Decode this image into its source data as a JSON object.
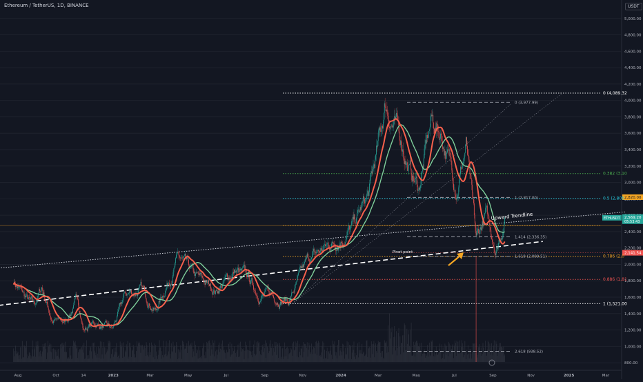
{
  "header": {
    "title": "Ethereum / TetherUS, 1D, BINANCE",
    "currency": "USDT"
  },
  "colors": {
    "background": "#131722",
    "grid": "#1e222d",
    "up_candle": "#26a69a",
    "down_candle": "#ef5350",
    "ma_fast": "#f7604c",
    "ma_slow": "#7fcf9b",
    "volume": "#2a2e39",
    "trendline": "#ffffff",
    "last_price": "#26a69a",
    "fib_price": "#f5a623",
    "arrow": "#f5a623"
  },
  "chart_data": {
    "type": "candlestick",
    "x_axis_labels": [
      "Aug",
      "Oct",
      "14",
      "2023",
      "Mar",
      "May",
      "Jul",
      "Sep",
      "Nov",
      "2024",
      "Mar",
      "May",
      "Jul",
      "Sep",
      "Nov",
      "2025",
      "Mar"
    ],
    "y_axis": {
      "range": [
        700,
        5200
      ],
      "ticks": [
        "800.00",
        "1,000.00",
        "1,200.00",
        "1,400.00",
        "1,600.00",
        "1,800.00",
        "2,000.00",
        "2,200.00",
        "2,400.00",
        "2,600.00",
        "2,800.00",
        "3,000.00",
        "3,200.00",
        "3,400.00",
        "3,600.00",
        "3,800.00",
        "4,000.00",
        "4,200.00",
        "4,400.00",
        "4,600.00",
        "4,800.00",
        "5,000.00"
      ]
    },
    "price_path": [
      [
        "2022-07-25",
        1800
      ],
      [
        "2022-08-14",
        1580
      ],
      [
        "2022-08-27",
        1480
      ],
      [
        "2022-09-08",
        1720
      ],
      [
        "2022-09-25",
        1320
      ],
      [
        "2022-10-15",
        1290
      ],
      [
        "2022-11-05",
        1580
      ],
      [
        "2022-11-14",
        1210
      ],
      [
        "2022-12-01",
        1280
      ],
      [
        "2022-12-31",
        1200
      ],
      [
        "2023-01-20",
        1630
      ],
      [
        "2023-02-15",
        1690
      ],
      [
        "2023-03-10",
        1440
      ],
      [
        "2023-04-15",
        2080
      ],
      [
        "2023-05-10",
        1850
      ],
      [
        "2023-06-15",
        1680
      ],
      [
        "2023-07-15",
        1920
      ],
      [
        "2023-08-05",
        1830
      ],
      [
        "2023-08-20",
        1650
      ],
      [
        "2023-09-15",
        1610
      ],
      [
        "2023-10-10",
        1560
      ],
      [
        "2023-11-10",
        2050
      ],
      [
        "2023-12-25",
        2300
      ],
      [
        "2024-01-20",
        2450
      ],
      [
        "2024-02-15",
        2850
      ],
      [
        "2024-03-05",
        3600
      ],
      [
        "2024-03-12",
        3950
      ],
      [
        "2024-04-10",
        3450
      ],
      [
        "2024-04-20",
        3150
      ],
      [
        "2024-05-05",
        2920
      ],
      [
        "2024-05-25",
        3750
      ],
      [
        "2024-06-10",
        3600
      ],
      [
        "2024-07-05",
        2950
      ],
      [
        "2024-07-20",
        3450
      ],
      [
        "2024-08-05",
        2250
      ],
      [
        "2024-08-20",
        2600
      ],
      [
        "2024-09-06",
        2200
      ],
      [
        "2024-09-20",
        2569.2
      ]
    ],
    "last_price": "2,569.20",
    "countdown": "05:53:43",
    "symbol": "ETHUSDT",
    "fib_price_label": "2,820.00",
    "fib_price_value": 2820,
    "pivot_price_label": "2,141.54",
    "pivot_price_value": 2141.54,
    "fib_extension": [
      {
        "label": "0 (3,977.99)",
        "value": 3977.99
      },
      {
        "label": "1 (2,817.00)",
        "value": 2817.0
      },
      {
        "label": "1.414 (2,336.35)",
        "value": 2336.35
      },
      {
        "label": "1.618 (2,099.51)",
        "value": 2099.51
      },
      {
        "label": "2.618 (938.52)",
        "value": 938.52
      }
    ],
    "fib_retracement": [
      {
        "label": "0 (4,089.32",
        "value": 4089.32,
        "color": "#ffffff"
      },
      {
        "label": "0.382 (3,10",
        "value": 3108,
        "color": "#4caf50"
      },
      {
        "label": "0.5 (2,805",
        "value": 2805,
        "color": "#26c6da"
      },
      {
        "label": "",
        "value": 2474,
        "color": "#f5a623"
      },
      {
        "label": "0.786 (2,0",
        "value": 2100,
        "color": "#f5a623"
      },
      {
        "label": "0.886 (1,81",
        "value": 1817,
        "color": "#ef5350"
      },
      {
        "label": "1 (1,521.00",
        "value": 1521,
        "color": "#ffffff"
      }
    ],
    "annotations": {
      "upward_trendline": "Upward Trendline",
      "pivot_point": "Pivot point"
    },
    "trendline_dashed": [
      [
        "2022-07-01",
        1500
      ],
      [
        "2024-11-20",
        2280
      ]
    ],
    "trendline_dotted": [
      [
        "2022-07-01",
        1955
      ],
      [
        "2025-04-01",
        2640
      ]
    ]
  }
}
